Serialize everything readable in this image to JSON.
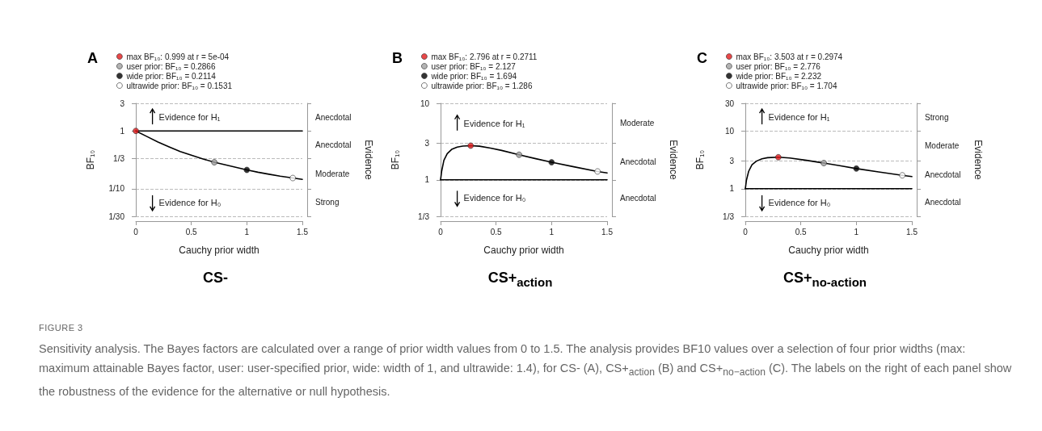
{
  "chart_data": [
    {
      "type": "line",
      "title": "A",
      "subtitle": "CS-",
      "xlabel": "Cauchy prior width",
      "ylabel": "BF₁₀",
      "y2label": "Evidence",
      "xlim": [
        0,
        1.5
      ],
      "xticks": [
        0,
        0.5,
        1,
        1.5
      ],
      "ylim": [
        0.03333,
        3
      ],
      "yticks": [
        3,
        1,
        {
          "value": 0.3333,
          "label": "1/3"
        },
        {
          "value": 0.1,
          "label": "1/10"
        },
        {
          "value": 0.03333,
          "label": "1/30"
        }
      ],
      "log": "y",
      "grid": "y",
      "legend": "top left",
      "line_style": "solid",
      "annotations": [
        "Evidence for H₁",
        "Evidence for H₀",
        "Anecdotal",
        "Anecdotal",
        "Moderate",
        "Strong"
      ],
      "series": [
        {
          "marker": "none",
          "color": "#000000",
          "x": [
            0,
            0.1,
            0.2,
            0.3,
            0.4,
            0.5,
            0.6,
            0.707,
            0.8,
            0.9,
            1,
            1.1,
            1.2,
            1.3,
            1.414,
            1.5
          ],
          "values": [
            1,
            0.8,
            0.64,
            0.53,
            0.44,
            0.38,
            0.33,
            0.2866,
            0.26,
            0.235,
            0.2114,
            0.193,
            0.178,
            0.165,
            0.1531,
            0.145
          ]
        },
        {
          "marker": "none",
          "color": "#000000",
          "x": [
            0,
            1.5
          ],
          "values": [
            1,
            1
          ]
        },
        {
          "type": "scatter",
          "marker": "circle",
          "name": "max BF₁₀: 0.999 at r = 5e-04",
          "color": "#e41a1c",
          "x": [
            0.0005
          ],
          "values": [
            0.999
          ]
        },
        {
          "type": "scatter",
          "marker": "circle",
          "name": "user prior: BF₁₀ = 0.2866",
          "color": "#a0a0a0",
          "x": [
            0.707
          ],
          "values": [
            0.2866
          ]
        },
        {
          "type": "scatter",
          "marker": "circle",
          "name": "wide prior: BF₁₀ = 0.2114",
          "color": "#000000",
          "x": [
            1
          ],
          "values": [
            0.2114
          ]
        },
        {
          "type": "scatter",
          "marker": "circle",
          "name": "ultrawide prior: BF₁₀ = 0.1531",
          "color": "#ffffff",
          "x": [
            1.414
          ],
          "values": [
            0.1531
          ]
        }
      ]
    },
    {
      "type": "line",
      "title": "B",
      "subtitle": "CS+$_{action}$",
      "xlabel": "Cauchy prior width",
      "ylabel": "BF₁₀",
      "y2label": "Evidence",
      "xlim": [
        0,
        1.5
      ],
      "xticks": [
        0,
        0.5,
        1,
        1.5
      ],
      "ylim": [
        0.3333,
        10
      ],
      "yticks": [
        10,
        3,
        1,
        {
          "value": 0.3333,
          "label": "1/3"
        }
      ],
      "log": "y",
      "grid": "y",
      "legend": "top left",
      "line_style": "solid",
      "annotations": [
        "Evidence for H₁",
        "Evidence for H₀",
        "Moderate",
        "Anecdotal",
        "Anecdotal"
      ],
      "series": [
        {
          "marker": "none",
          "color": "#000000",
          "x": [
            0,
            0.01,
            0.03,
            0.06,
            0.1,
            0.15,
            0.2,
            0.2711,
            0.35,
            0.45,
            0.55,
            0.707,
            0.85,
            1,
            1.2,
            1.414,
            1.5
          ],
          "values": [
            1,
            1.3,
            1.8,
            2.2,
            2.5,
            2.68,
            2.76,
            2.796,
            2.75,
            2.6,
            2.42,
            2.127,
            1.9,
            1.694,
            1.48,
            1.286,
            1.23
          ]
        },
        {
          "marker": "none",
          "color": "#000000",
          "x": [
            0,
            1.5
          ],
          "values": [
            1,
            1
          ]
        },
        {
          "type": "scatter",
          "marker": "circle",
          "name": "max BF₁₀: 2.796 at r = 0.2711",
          "color": "#e41a1c",
          "x": [
            0.2711
          ],
          "values": [
            2.796
          ]
        },
        {
          "type": "scatter",
          "marker": "circle",
          "name": "user prior: BF₁₀ = 2.127",
          "color": "#a0a0a0",
          "x": [
            0.707
          ],
          "values": [
            2.127
          ]
        },
        {
          "type": "scatter",
          "marker": "circle",
          "name": "wide prior: BF₁₀ = 1.694",
          "color": "#000000",
          "x": [
            1
          ],
          "values": [
            1.694
          ]
        },
        {
          "type": "scatter",
          "marker": "circle",
          "name": "ultrawide prior: BF₁₀ = 1.286",
          "color": "#ffffff",
          "x": [
            1.414
          ],
          "values": [
            1.286
          ]
        }
      ]
    },
    {
      "type": "line",
      "title": "C",
      "subtitle": "CS+$_{no-action}$",
      "xlabel": "Cauchy prior width",
      "ylabel": "BF₁₀",
      "y2label": "Evidence",
      "xlim": [
        0,
        1.5
      ],
      "xticks": [
        0,
        0.5,
        1,
        1.5
      ],
      "ylim": [
        0.3333,
        30
      ],
      "yticks": [
        30,
        10,
        3,
        1,
        {
          "value": 0.3333,
          "label": "1/3"
        }
      ],
      "log": "y",
      "grid": "y",
      "legend": "top left",
      "line_style": "solid",
      "annotations": [
        "Evidence for H₁",
        "Evidence for H₀",
        "Strong",
        "Moderate",
        "Anecdotal",
        "Anecdotal",
        "FIGURE 3",
        "Sensitivity analysis. The Bayes factors are calculated over a range of prior width values from 0 to 1.5. The analysis provides BF10 values over a selection of four prior widths (max: maximum attainable Bayes factor, user: user-specified prior, wide: width of 1, and ultrawide: 1.4), for CS- (A), CS+$_{action}$ (B) and CS+$_{no−action}$ (C). The labels on the right of each panel show the robustness of the evidence for the alternative or null hypothesis."
      ],
      "series": [
        {
          "marker": "none",
          "color": "#000000",
          "x": [
            0,
            0.01,
            0.03,
            0.06,
            0.1,
            0.15,
            0.2,
            0.2974,
            0.4,
            0.55,
            0.707,
            0.85,
            1,
            1.2,
            1.414,
            1.5
          ],
          "values": [
            1,
            1.4,
            2.0,
            2.6,
            3.0,
            3.3,
            3.44,
            3.503,
            3.4,
            3.1,
            2.776,
            2.5,
            2.232,
            1.95,
            1.704,
            1.62
          ]
        },
        {
          "marker": "none",
          "color": "#000000",
          "x": [
            0,
            1.5
          ],
          "values": [
            1,
            1
          ]
        },
        {
          "type": "scatter",
          "marker": "circle",
          "name": "max BF₁₀: 3.503 at r = 0.2974",
          "color": "#e41a1c",
          "x": [
            0.2974
          ],
          "values": [
            3.503
          ]
        },
        {
          "type": "scatter",
          "marker": "circle",
          "name": "user prior: BF₁₀ = 2.776",
          "color": "#a0a0a0",
          "x": [
            0.707
          ],
          "values": [
            2.776
          ]
        },
        {
          "type": "scatter",
          "marker": "circle",
          "name": "wide prior: BF₁₀ = 2.232",
          "color": "#000000",
          "x": [
            1
          ],
          "values": [
            2.232
          ]
        },
        {
          "type": "scatter",
          "marker": "circle",
          "name": "ultrawide prior: BF₁₀ = 1.704",
          "color": "#ffffff",
          "x": [
            1.414
          ],
          "values": [
            1.704
          ]
        }
      ]
    }
  ]
}
